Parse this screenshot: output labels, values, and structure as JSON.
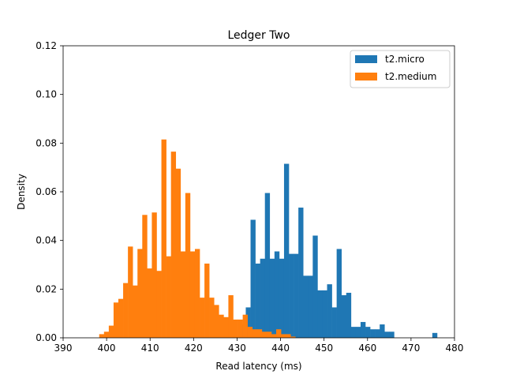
{
  "chart_data": {
    "type": "bar",
    "subtype": "overlaid-histogram",
    "title": "Ledger Two",
    "xlabel": "Read latency (ms)",
    "ylabel": "Density",
    "xlim": [
      390,
      480
    ],
    "ylim": [
      0,
      0.12
    ],
    "xticks": [
      "390",
      "400",
      "410",
      "420",
      "430",
      "440",
      "450",
      "460",
      "470",
      "480"
    ],
    "yticks": [
      "0.00",
      "0.02",
      "0.04",
      "0.06",
      "0.08",
      "0.10",
      "0.12"
    ],
    "grid": false,
    "legend_position": "top-right",
    "series": [
      {
        "name": "t2.micro",
        "color": "#1f77b4",
        "bin_width": 1.1,
        "bin_starts": [
          430.9,
          432.0,
          433.1,
          434.2,
          435.3,
          436.4,
          437.5,
          438.6,
          439.7,
          440.8,
          441.9,
          443.0,
          444.1,
          445.2,
          446.3,
          447.4,
          448.5,
          449.6,
          450.7,
          451.8,
          452.9,
          454.0,
          455.1,
          456.2,
          457.3,
          458.4,
          459.5,
          460.6,
          461.7,
          462.8,
          463.9,
          465.0,
          466.1,
          467.2,
          468.3,
          469.4,
          470.5,
          471.6,
          472.7,
          473.8,
          474.9
        ],
        "values": [
          0.0055,
          0.0125,
          0.0485,
          0.0305,
          0.0325,
          0.0595,
          0.0325,
          0.0355,
          0.0325,
          0.0715,
          0.0345,
          0.0345,
          0.0535,
          0.0255,
          0.0255,
          0.042,
          0.0195,
          0.0195,
          0.022,
          0.0125,
          0.0365,
          0.0175,
          0.0185,
          0.0045,
          0.0045,
          0.0065,
          0.0045,
          0.0035,
          0.0035,
          0.0055,
          0.0025,
          0.0025,
          0.0,
          0.0,
          0.0,
          0.0,
          0.0,
          0.0,
          0.0,
          0.0,
          0.002
        ]
      },
      {
        "name": "t2.medium",
        "color": "#ff7f0e",
        "bin_width": 1.1,
        "bin_starts": [
          398.3,
          399.4,
          400.5,
          401.6,
          402.7,
          403.8,
          404.9,
          406.0,
          407.1,
          408.2,
          409.3,
          410.4,
          411.5,
          412.6,
          413.7,
          414.8,
          415.9,
          417.0,
          418.1,
          419.2,
          420.3,
          421.4,
          422.5,
          423.6,
          424.7,
          425.8,
          426.9,
          428.0,
          429.1,
          430.2,
          431.3,
          432.4,
          433.5,
          434.6,
          435.7,
          436.8,
          437.9,
          439.0,
          440.1,
          441.2,
          442.3
        ],
        "values": [
          0.0015,
          0.0025,
          0.005,
          0.0145,
          0.016,
          0.0225,
          0.0375,
          0.0215,
          0.0365,
          0.0505,
          0.0285,
          0.0515,
          0.0275,
          0.0815,
          0.0335,
          0.0765,
          0.0695,
          0.0355,
          0.0595,
          0.0355,
          0.0365,
          0.0165,
          0.0305,
          0.0165,
          0.0135,
          0.0095,
          0.0085,
          0.0175,
          0.0075,
          0.0075,
          0.0095,
          0.0045,
          0.0035,
          0.0035,
          0.0025,
          0.0025,
          0.0015,
          0.0035,
          0.0015,
          0.0015,
          0.0005
        ]
      }
    ]
  }
}
